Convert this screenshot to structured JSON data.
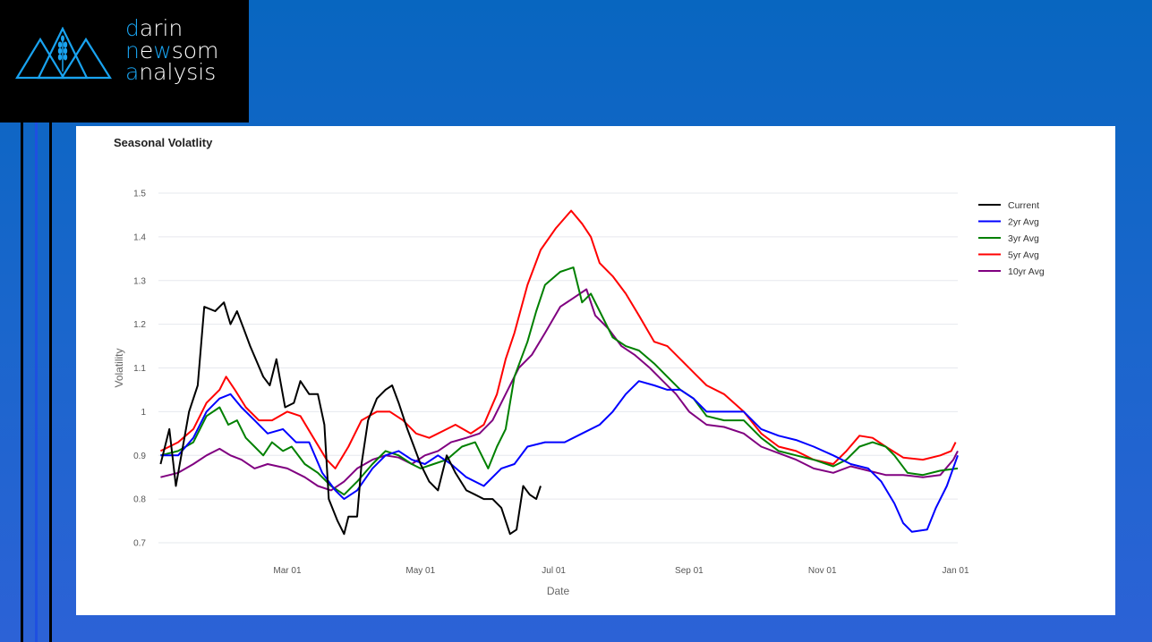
{
  "logo": {
    "line1_first": "d",
    "line1_rest": "arin",
    "line2_first": "n",
    "line2_mid1": "e",
    "line2_w": "w",
    "line2_rest": "som",
    "line3_first": "a",
    "line3_rest": "nalysis",
    "accent": "#19a3f0"
  },
  "panel": {
    "title": "Seasonal Volatlity"
  },
  "chart_data": {
    "type": "line",
    "title": "Seasonal Volatlity",
    "xlabel": "Date",
    "ylabel": "Volatility",
    "x_unit": "day of year",
    "xlim": [
      0,
      366
    ],
    "ylim": [
      0.7,
      1.5
    ],
    "yticks": [
      0.7,
      0.8,
      0.9,
      1,
      1.1,
      1.2,
      1.3,
      1.4,
      1.5
    ],
    "ytick_labels": [
      "0.7",
      "0.8",
      "0.9",
      "1",
      "1.1",
      "1.2",
      "1.3",
      "1.4",
      "1.5"
    ],
    "xticks": [
      59,
      120,
      181,
      243,
      304,
      365
    ],
    "xtick_labels": [
      "Mar 01",
      "May 01",
      "Jul 01",
      "Sep 01",
      "Nov 01",
      "Jan 01"
    ],
    "grid": true,
    "legend_position": "right",
    "series": [
      {
        "name": "Current",
        "color": "#000000",
        "points": [
          [
            1,
            0.88
          ],
          [
            5,
            0.96
          ],
          [
            8,
            0.83
          ],
          [
            14,
            1.0
          ],
          [
            18,
            1.06
          ],
          [
            21,
            1.24
          ],
          [
            26,
            1.23
          ],
          [
            30,
            1.25
          ],
          [
            33,
            1.2
          ],
          [
            36,
            1.23
          ],
          [
            39,
            1.19
          ],
          [
            42,
            1.15
          ],
          [
            48,
            1.08
          ],
          [
            51,
            1.06
          ],
          [
            54,
            1.12
          ],
          [
            58,
            1.01
          ],
          [
            62,
            1.02
          ],
          [
            65,
            1.07
          ],
          [
            69,
            1.04
          ],
          [
            73,
            1.04
          ],
          [
            76,
            0.97
          ],
          [
            78,
            0.8
          ],
          [
            82,
            0.75
          ],
          [
            85,
            0.72
          ],
          [
            87,
            0.76
          ],
          [
            91,
            0.76
          ],
          [
            93,
            0.88
          ],
          [
            96,
            0.98
          ],
          [
            100,
            1.03
          ],
          [
            104,
            1.05
          ],
          [
            107,
            1.06
          ],
          [
            110,
            1.02
          ],
          [
            114,
            0.96
          ],
          [
            117,
            0.92
          ],
          [
            120,
            0.88
          ],
          [
            124,
            0.84
          ],
          [
            128,
            0.82
          ],
          [
            132,
            0.9
          ],
          [
            136,
            0.86
          ],
          [
            141,
            0.82
          ],
          [
            145,
            0.81
          ],
          [
            149,
            0.8
          ],
          [
            153,
            0.8
          ],
          [
            157,
            0.78
          ],
          [
            161,
            0.72
          ],
          [
            164,
            0.73
          ],
          [
            167,
            0.83
          ],
          [
            170,
            0.81
          ],
          [
            173,
            0.8
          ],
          [
            175,
            0.83
          ]
        ]
      },
      {
        "name": "2yr Avg",
        "color": "#0000ff",
        "points": [
          [
            1,
            0.9
          ],
          [
            9,
            0.9
          ],
          [
            16,
            0.94
          ],
          [
            22,
            1.0
          ],
          [
            28,
            1.03
          ],
          [
            33,
            1.04
          ],
          [
            38,
            1.01
          ],
          [
            44,
            0.98
          ],
          [
            50,
            0.95
          ],
          [
            57,
            0.96
          ],
          [
            63,
            0.93
          ],
          [
            69,
            0.93
          ],
          [
            75,
            0.86
          ],
          [
            81,
            0.82
          ],
          [
            85,
            0.8
          ],
          [
            91,
            0.82
          ],
          [
            98,
            0.87
          ],
          [
            104,
            0.9
          ],
          [
            110,
            0.91
          ],
          [
            116,
            0.89
          ],
          [
            122,
            0.88
          ],
          [
            128,
            0.9
          ],
          [
            134,
            0.88
          ],
          [
            141,
            0.85
          ],
          [
            149,
            0.83
          ],
          [
            157,
            0.87
          ],
          [
            163,
            0.88
          ],
          [
            169,
            0.92
          ],
          [
            177,
            0.93
          ],
          [
            186,
            0.93
          ],
          [
            194,
            0.95
          ],
          [
            202,
            0.97
          ],
          [
            208,
            1.0
          ],
          [
            214,
            1.04
          ],
          [
            220,
            1.07
          ],
          [
            227,
            1.06
          ],
          [
            233,
            1.05
          ],
          [
            239,
            1.05
          ],
          [
            245,
            1.03
          ],
          [
            251,
            1.0
          ],
          [
            259,
            1.0
          ],
          [
            268,
            1.0
          ],
          [
            276,
            0.96
          ],
          [
            284,
            0.945
          ],
          [
            292,
            0.935
          ],
          [
            300,
            0.92
          ],
          [
            309,
            0.9
          ],
          [
            317,
            0.88
          ],
          [
            325,
            0.87
          ],
          [
            331,
            0.84
          ],
          [
            337,
            0.79
          ],
          [
            341,
            0.745
          ],
          [
            345,
            0.725
          ],
          [
            352,
            0.73
          ],
          [
            356,
            0.78
          ],
          [
            361,
            0.83
          ],
          [
            366,
            0.9
          ]
        ]
      },
      {
        "name": "3yr Avg",
        "color": "#008000",
        "points": [
          [
            1,
            0.9
          ],
          [
            9,
            0.91
          ],
          [
            16,
            0.93
          ],
          [
            22,
            0.99
          ],
          [
            28,
            1.01
          ],
          [
            32,
            0.97
          ],
          [
            36,
            0.98
          ],
          [
            40,
            0.94
          ],
          [
            44,
            0.92
          ],
          [
            48,
            0.9
          ],
          [
            52,
            0.93
          ],
          [
            57,
            0.91
          ],
          [
            61,
            0.92
          ],
          [
            67,
            0.88
          ],
          [
            73,
            0.86
          ],
          [
            79,
            0.83
          ],
          [
            85,
            0.81
          ],
          [
            91,
            0.84
          ],
          [
            98,
            0.88
          ],
          [
            104,
            0.91
          ],
          [
            110,
            0.9
          ],
          [
            116,
            0.88
          ],
          [
            120,
            0.87
          ],
          [
            126,
            0.88
          ],
          [
            132,
            0.89
          ],
          [
            139,
            0.92
          ],
          [
            145,
            0.93
          ],
          [
            151,
            0.87
          ],
          [
            155,
            0.92
          ],
          [
            159,
            0.96
          ],
          [
            163,
            1.08
          ],
          [
            169,
            1.16
          ],
          [
            173,
            1.23
          ],
          [
            177,
            1.29
          ],
          [
            184,
            1.32
          ],
          [
            190,
            1.33
          ],
          [
            194,
            1.25
          ],
          [
            198,
            1.27
          ],
          [
            202,
            1.23
          ],
          [
            208,
            1.17
          ],
          [
            214,
            1.15
          ],
          [
            220,
            1.14
          ],
          [
            227,
            1.11
          ],
          [
            233,
            1.08
          ],
          [
            239,
            1.05
          ],
          [
            245,
            1.03
          ],
          [
            251,
            0.99
          ],
          [
            259,
            0.98
          ],
          [
            268,
            0.98
          ],
          [
            276,
            0.94
          ],
          [
            284,
            0.91
          ],
          [
            292,
            0.9
          ],
          [
            300,
            0.89
          ],
          [
            309,
            0.875
          ],
          [
            315,
            0.89
          ],
          [
            321,
            0.92
          ],
          [
            327,
            0.93
          ],
          [
            333,
            0.92
          ],
          [
            337,
            0.9
          ],
          [
            343,
            0.86
          ],
          [
            350,
            0.855
          ],
          [
            358,
            0.865
          ],
          [
            366,
            0.87
          ]
        ]
      },
      {
        "name": "5yr Avg",
        "color": "#ff0000",
        "points": [
          [
            1,
            0.91
          ],
          [
            9,
            0.93
          ],
          [
            16,
            0.96
          ],
          [
            22,
            1.02
          ],
          [
            28,
            1.05
          ],
          [
            31,
            1.08
          ],
          [
            35,
            1.05
          ],
          [
            40,
            1.01
          ],
          [
            46,
            0.98
          ],
          [
            52,
            0.98
          ],
          [
            59,
            1.0
          ],
          [
            65,
            0.99
          ],
          [
            71,
            0.94
          ],
          [
            77,
            0.89
          ],
          [
            81,
            0.87
          ],
          [
            87,
            0.92
          ],
          [
            93,
            0.98
          ],
          [
            100,
            1.0
          ],
          [
            106,
            1.0
          ],
          [
            112,
            0.98
          ],
          [
            118,
            0.95
          ],
          [
            124,
            0.94
          ],
          [
            130,
            0.955
          ],
          [
            136,
            0.97
          ],
          [
            143,
            0.95
          ],
          [
            149,
            0.97
          ],
          [
            155,
            1.04
          ],
          [
            159,
            1.12
          ],
          [
            163,
            1.18
          ],
          [
            169,
            1.29
          ],
          [
            175,
            1.37
          ],
          [
            182,
            1.42
          ],
          [
            189,
            1.46
          ],
          [
            194,
            1.43
          ],
          [
            198,
            1.4
          ],
          [
            202,
            1.34
          ],
          [
            208,
            1.31
          ],
          [
            214,
            1.27
          ],
          [
            220,
            1.22
          ],
          [
            227,
            1.16
          ],
          [
            233,
            1.15
          ],
          [
            239,
            1.12
          ],
          [
            245,
            1.09
          ],
          [
            251,
            1.06
          ],
          [
            259,
            1.04
          ],
          [
            268,
            1.0
          ],
          [
            276,
            0.95
          ],
          [
            284,
            0.92
          ],
          [
            292,
            0.91
          ],
          [
            300,
            0.89
          ],
          [
            309,
            0.88
          ],
          [
            315,
            0.91
          ],
          [
            321,
            0.945
          ],
          [
            327,
            0.94
          ],
          [
            333,
            0.92
          ],
          [
            341,
            0.895
          ],
          [
            350,
            0.89
          ],
          [
            358,
            0.9
          ],
          [
            363,
            0.91
          ],
          [
            365,
            0.93
          ]
        ]
      },
      {
        "name": "10yr Avg",
        "color": "#800080",
        "points": [
          [
            1,
            0.85
          ],
          [
            9,
            0.86
          ],
          [
            16,
            0.88
          ],
          [
            22,
            0.9
          ],
          [
            28,
            0.915
          ],
          [
            33,
            0.9
          ],
          [
            38,
            0.89
          ],
          [
            44,
            0.87
          ],
          [
            50,
            0.88
          ],
          [
            59,
            0.87
          ],
          [
            67,
            0.85
          ],
          [
            73,
            0.83
          ],
          [
            79,
            0.82
          ],
          [
            85,
            0.84
          ],
          [
            91,
            0.87
          ],
          [
            98,
            0.89
          ],
          [
            104,
            0.9
          ],
          [
            110,
            0.895
          ],
          [
            116,
            0.88
          ],
          [
            122,
            0.9
          ],
          [
            128,
            0.91
          ],
          [
            134,
            0.93
          ],
          [
            141,
            0.94
          ],
          [
            147,
            0.95
          ],
          [
            153,
            0.98
          ],
          [
            159,
            1.04
          ],
          [
            165,
            1.1
          ],
          [
            171,
            1.13
          ],
          [
            177,
            1.18
          ],
          [
            184,
            1.24
          ],
          [
            190,
            1.26
          ],
          [
            196,
            1.28
          ],
          [
            200,
            1.22
          ],
          [
            206,
            1.19
          ],
          [
            212,
            1.15
          ],
          [
            218,
            1.13
          ],
          [
            225,
            1.1
          ],
          [
            231,
            1.07
          ],
          [
            237,
            1.04
          ],
          [
            243,
            1.0
          ],
          [
            251,
            0.97
          ],
          [
            259,
            0.965
          ],
          [
            268,
            0.95
          ],
          [
            276,
            0.92
          ],
          [
            284,
            0.905
          ],
          [
            292,
            0.89
          ],
          [
            300,
            0.87
          ],
          [
            309,
            0.86
          ],
          [
            317,
            0.875
          ],
          [
            325,
            0.865
          ],
          [
            333,
            0.855
          ],
          [
            341,
            0.855
          ],
          [
            350,
            0.85
          ],
          [
            358,
            0.855
          ],
          [
            364,
            0.89
          ],
          [
            366,
            0.91
          ]
        ]
      }
    ]
  }
}
